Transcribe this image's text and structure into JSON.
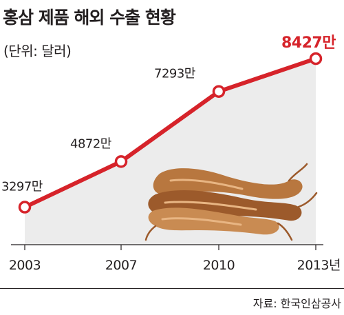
{
  "header": {
    "title": "홍삼 제품 해외 수출 현황",
    "unit": "(단위: 달러)"
  },
  "footer": {
    "source": "자료: 한국인삼공사"
  },
  "illustration": {
    "icon": "red-ginseng-roots-illustration"
  },
  "colors": {
    "line": "#d6232a",
    "area": "#ececec",
    "marker_fill": "#ffffff",
    "text": "#231f20",
    "highlight_label": "#d6232a"
  },
  "chart_data": {
    "type": "line",
    "x": [
      "2003",
      "2007",
      "2010",
      "2013"
    ],
    "tick_labels": [
      "2003",
      "2007",
      "2010",
      "2013년"
    ],
    "series": [
      {
        "values": [
          3297,
          4872,
          7293,
          8427
        ],
        "labels": [
          "3297만",
          "4872만",
          "7293만",
          "8427만"
        ]
      }
    ],
    "ylim": [
      2000,
      9500
    ],
    "xlabel": "",
    "ylabel": "",
    "grid": false,
    "legend": "none"
  }
}
